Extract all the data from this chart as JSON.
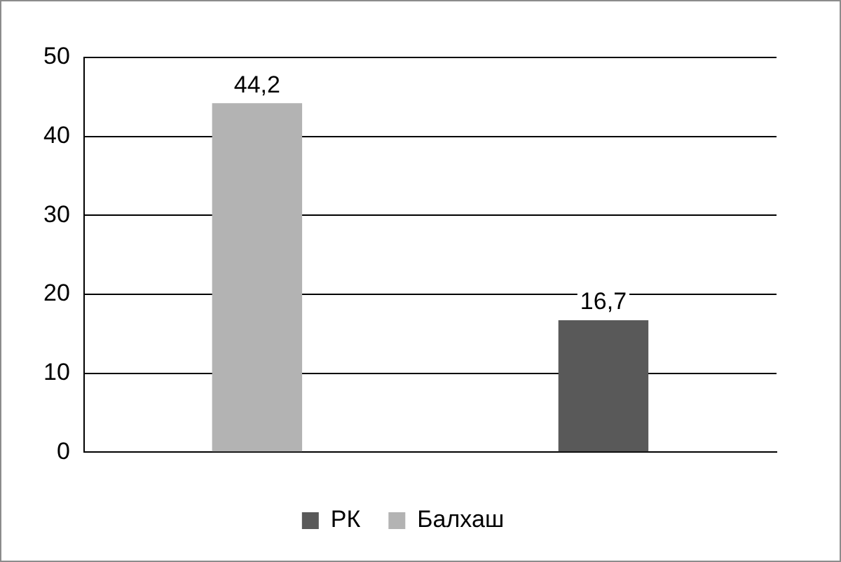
{
  "chart_data": {
    "type": "bar",
    "categories": [
      null,
      null
    ],
    "series": [
      {
        "name": "РК",
        "color": "#595959",
        "values": [
          null,
          16.7
        ],
        "value_labels": [
          null,
          "16,7"
        ]
      },
      {
        "name": "Балхаш",
        "color": "#b3b3b3",
        "values": [
          44.2,
          null
        ],
        "value_labels": [
          "44,2",
          null
        ]
      }
    ],
    "ylim": [
      0,
      50
    ],
    "yticks": [
      0,
      10,
      20,
      30,
      40,
      50
    ],
    "grid": "y",
    "legend": "bottom"
  }
}
